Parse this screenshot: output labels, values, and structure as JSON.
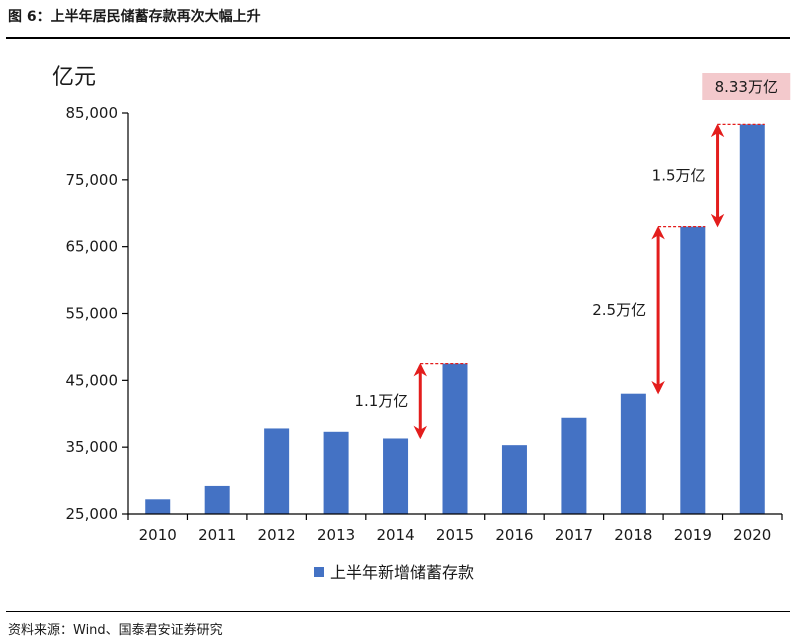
{
  "figure_title": "图 6：上半年居民储蓄存款再次大幅上升",
  "source": "资料来源：Wind、国泰君安证券研究",
  "colors": {
    "bar": "#4472c4",
    "arrow": "#e31d1c",
    "highlight_bg": "#f3c9cc",
    "axis": "#000000"
  },
  "chart_data": {
    "type": "bar",
    "title": "",
    "ylabel": "亿元",
    "xlabel": "",
    "ylim": [
      25000,
      85000
    ],
    "yticks": [
      25000,
      35000,
      45000,
      55000,
      65000,
      75000,
      85000
    ],
    "ytick_labels": [
      "25,000",
      "35,000",
      "45,000",
      "55,000",
      "65,000",
      "75,000",
      "85,000"
    ],
    "categories": [
      "2010",
      "2011",
      "2012",
      "2013",
      "2014",
      "2015",
      "2016",
      "2017",
      "2018",
      "2019",
      "2020"
    ],
    "series": [
      {
        "name": "上半年新增储蓄存款",
        "values": [
          27200,
          29200,
          37800,
          37300,
          36300,
          47500,
          35300,
          39400,
          43000,
          68000,
          83300
        ]
      }
    ],
    "legend": "bottom",
    "grid": false,
    "annotations": [
      {
        "text": "1.1万亿",
        "from": "2014",
        "to": "2015",
        "type": "double-arrow"
      },
      {
        "text": "2.5万亿",
        "from": "2018",
        "to": "2019",
        "type": "double-arrow"
      },
      {
        "text": "1.5万亿",
        "from": "2019",
        "to": "2020",
        "type": "double-arrow"
      },
      {
        "text": "8.33万亿",
        "at": "2020",
        "type": "highlight-label"
      }
    ]
  }
}
